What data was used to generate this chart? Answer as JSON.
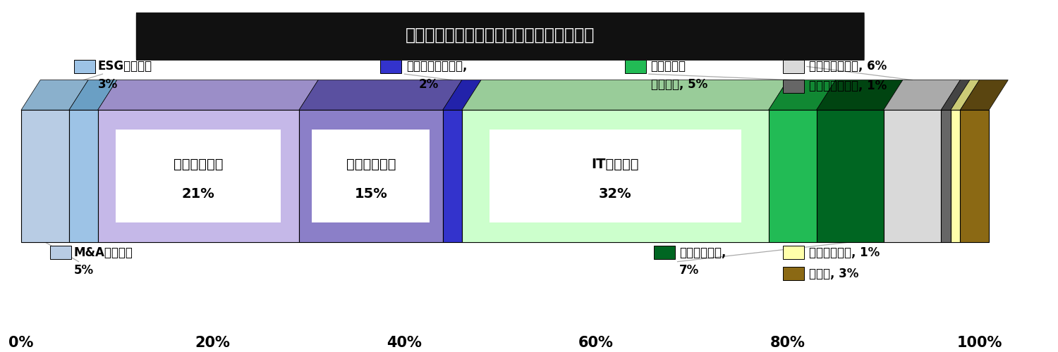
{
  "title": "コンサル求人　コンサルタント職種別割合",
  "segments": [
    {
      "label": "M&Aコンサル",
      "value": 5,
      "color": "#b8cce4",
      "dark_color": "#8ab0cc",
      "show_inner": false,
      "pos": "below_left"
    },
    {
      "label": "ESGコンサル",
      "value": 3,
      "color": "#9dc3e6",
      "dark_color": "#6a9fc4",
      "show_inner": false,
      "pos": "above_left"
    },
    {
      "label": "戦略コンサル",
      "value": 21,
      "color": "#c5b8e8",
      "dark_color": "#9b8ec8",
      "show_inner": true,
      "pos": "inner"
    },
    {
      "label": "業務コンサル",
      "value": 15,
      "color": "#8b7fc8",
      "dark_color": "#5a50a0",
      "show_inner": true,
      "pos": "inner"
    },
    {
      "label": "事業再生コンサル",
      "value": 2,
      "color": "#3333cc",
      "dark_color": "#2222aa",
      "show_inner": false,
      "pos": "above_mid"
    },
    {
      "label": "ITコンサル",
      "value": 32,
      "color": "#ccffcc",
      "dark_color": "#99cc99",
      "show_inner": true,
      "pos": "inner"
    },
    {
      "label": "組織・人事\nコンサル",
      "value": 5,
      "color": "#22bb55",
      "dark_color": "#118833",
      "show_inner": false,
      "pos": "above_right"
    },
    {
      "label": "財務コンサル",
      "value": 7,
      "color": "#006622",
      "dark_color": "#004411",
      "show_inner": false,
      "pos": "below_right"
    },
    {
      "label": "リスクコンサル",
      "value": 6,
      "color": "#d9d9d9",
      "dark_color": "#aaaaaa",
      "show_inner": false,
      "pos": "above_far"
    },
    {
      "label": "マーケコンサル",
      "value": 1,
      "color": "#666666",
      "dark_color": "#444444",
      "show_inner": false,
      "pos": "above_far2"
    },
    {
      "label": "リサーチャー",
      "value": 1,
      "color": "#ffffaa",
      "dark_color": "#cccc77",
      "show_inner": false,
      "pos": "below_far"
    },
    {
      "label": "その他",
      "value": 3,
      "color": "#8b6914",
      "dark_color": "#5a4510",
      "show_inner": false,
      "pos": "below_far2"
    }
  ],
  "bg_color": "#ffffff",
  "title_bg": "#111111",
  "title_fg": "#ffffff",
  "xticks": [
    0,
    20,
    40,
    60,
    80,
    100
  ],
  "xtick_labels": [
    "0%",
    "20%",
    "40%",
    "60%",
    "80%",
    "100%"
  ]
}
